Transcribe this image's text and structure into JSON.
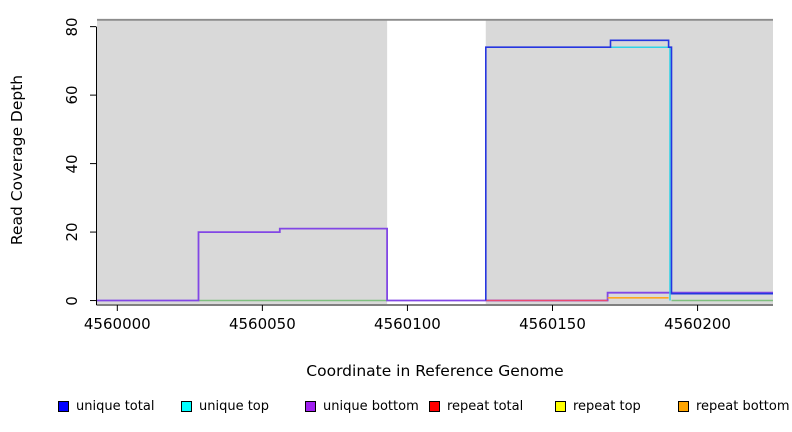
{
  "chart_data": {
    "type": "line",
    "title": "",
    "xlabel": "Coordinate in Reference Genome",
    "ylabel": "Read Coverage Depth",
    "x_ticks": [
      4560000,
      4560050,
      4560100,
      4560150,
      4560200
    ],
    "y_ticks": [
      0,
      20,
      40,
      60,
      80
    ],
    "xlim": [
      4559993,
      4560226
    ],
    "ylim": [
      -1.3,
      83.4
    ],
    "grid": false,
    "legend_position": "bottom",
    "shaded_regions": {
      "color": "#d9d9d9",
      "x_ranges": [
        [
          4559993,
          4560093
        ],
        [
          4560127,
          4560226
        ]
      ]
    },
    "series": [
      {
        "name": "total-coverage-gray-line",
        "color": "#8c8c8c",
        "width": 1.8,
        "segments": [
          [
            [
              4559993,
              82
            ],
            [
              4560226,
              82
            ]
          ]
        ]
      },
      {
        "name": "green-baseline-line",
        "color": "#7fbf7f",
        "width": 1.4,
        "segments": [
          [
            [
              4560028,
              0
            ],
            [
              4560093,
              0
            ]
          ],
          [
            [
              4560191,
              0
            ],
            [
              4560226,
              0
            ]
          ]
        ]
      },
      {
        "name": "unique bottom",
        "color": "#8247e5",
        "width": 1.8,
        "segments": [
          [
            [
              4559993,
              0
            ],
            [
              4560028,
              0
            ],
            [
              4560028,
              20
            ],
            [
              4560056,
              20
            ],
            [
              4560056,
              21
            ],
            [
              4560093,
              21
            ],
            [
              4560093,
              0
            ],
            [
              4560169,
              0
            ],
            [
              4560169,
              2.3
            ],
            [
              4560226,
              2.3
            ]
          ]
        ]
      },
      {
        "name": "repeat total",
        "color": "#e84a70",
        "width": 1.4,
        "segments": [
          [
            [
              4560127,
              0
            ],
            [
              4560169,
              0
            ]
          ]
        ]
      },
      {
        "name": "repeat top",
        "color": "#f5e33a",
        "width": 1.2,
        "segments": []
      },
      {
        "name": "repeat bottom",
        "color": "#ffa520",
        "width": 1.6,
        "segments": [
          [
            [
              4560169,
              0.8
            ],
            [
              4560190,
              0.8
            ]
          ]
        ]
      },
      {
        "name": "unique top",
        "color": "#2ed3e8",
        "width": 1.5,
        "segments": [
          [
            [
              4560127,
              74
            ],
            [
              4560190.5,
              74
            ],
            [
              4560190.5,
              0
            ]
          ]
        ]
      },
      {
        "name": "unique total",
        "color": "#2636e0",
        "width": 1.6,
        "segments": [
          [
            [
              4560127,
              0
            ],
            [
              4560127,
              74
            ],
            [
              4560170,
              74
            ],
            [
              4560170,
              76
            ],
            [
              4560190,
              76
            ],
            [
              4560190,
              74
            ],
            [
              4560191,
              74
            ],
            [
              4560191,
              2
            ],
            [
              4560226,
              2
            ]
          ]
        ]
      }
    ],
    "legend": [
      {
        "label": "unique total",
        "color": "#0000ff"
      },
      {
        "label": "unique top",
        "color": "#00ffff"
      },
      {
        "label": "unique bottom",
        "color": "#a020f0"
      },
      {
        "label": "repeat total",
        "color": "#ff0000"
      },
      {
        "label": "repeat top",
        "color": "#ffff00"
      },
      {
        "label": "repeat bottom",
        "color": "#ffa500"
      }
    ],
    "axis_color": "#000000"
  }
}
